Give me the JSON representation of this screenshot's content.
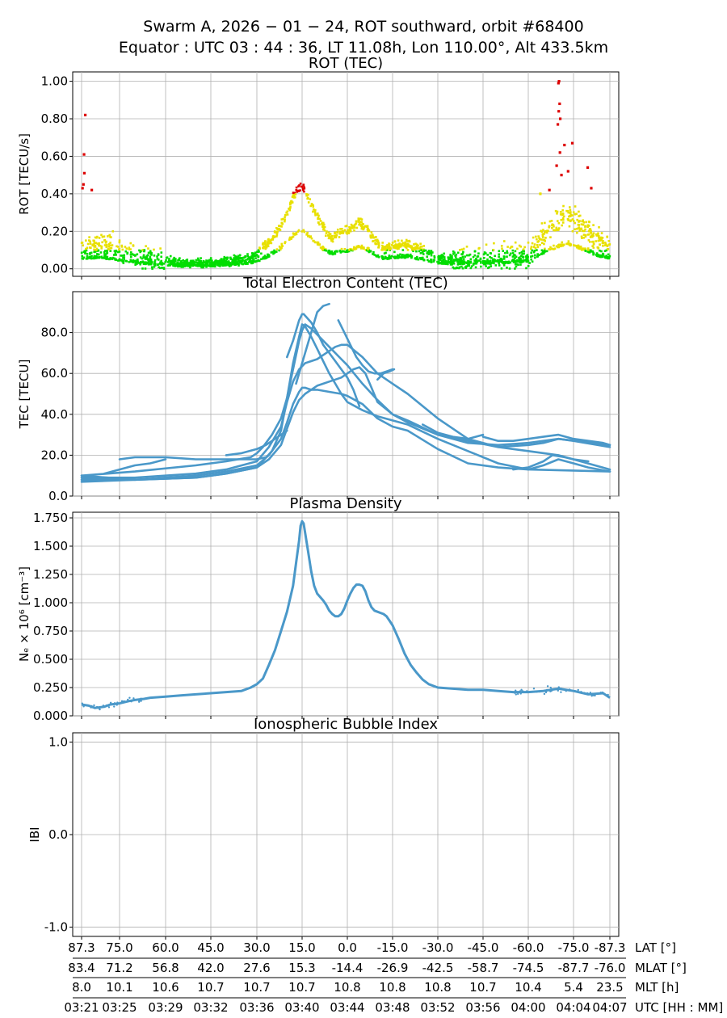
{
  "figure": {
    "title_line1": "Swarm A,  2026 − 01 − 24,  ROT southward,  orbit #68400",
    "title_line2": "Equator :  UTC 03 : 44 : 36,  LT 11.08h,  Lon 110.00°,  Alt 433.5km"
  },
  "colors": {
    "low": "#00dd00",
    "medium": "#e8e000",
    "high": "#dd0000",
    "line": "#4a98c9",
    "grid": "#b0b0b0"
  },
  "x_axis": {
    "rows": [
      {
        "label": "LAT [°]",
        "ticks": [
          "87.3",
          "75.0",
          "60.0",
          "45.0",
          "30.0",
          "15.0",
          "0.0",
          "-15.0",
          "-30.0",
          "-45.0",
          "-60.0",
          "-75.0",
          "-87.3"
        ]
      },
      {
        "label": "MLAT [°]",
        "ticks": [
          "83.4",
          "71.2",
          "56.8",
          "42.0",
          "27.6",
          "15.3",
          "-14.4",
          "-26.9",
          "-42.5",
          "-58.7",
          "-74.5",
          "-87.7",
          "-76.0"
        ]
      },
      {
        "label": "MLT [h]",
        "ticks": [
          "8.0",
          "10.1",
          "10.6",
          "10.7",
          "10.7",
          "10.7",
          "10.8",
          "10.8",
          "10.8",
          "10.7",
          "10.4",
          "5.4",
          "23.5"
        ]
      },
      {
        "label": "UTC [HH : MM]",
        "ticks": [
          "03:21",
          "03:25",
          "03:29",
          "03:32",
          "03:36",
          "03:40",
          "03:44",
          "03:48",
          "03:52",
          "03:56",
          "04:00",
          "04:04",
          "04:07"
        ]
      }
    ]
  },
  "chart_data": [
    {
      "type": "scatter",
      "title": "ROT (TEC)",
      "ylabel": "ROT [TECU/s]",
      "ylim": [
        -0.04,
        1.05
      ],
      "yticks": [
        "0.00",
        "0.20",
        "0.40",
        "0.60",
        "0.80",
        "1.00"
      ],
      "grid": true,
      "x_unit": "latitude (southward, 87.3 to -87.3)",
      "xlim": [
        88.6,
        -88.6
      ],
      "envelope": {
        "x": [
          87.3,
          85,
          82,
          80,
          77,
          75,
          70,
          65,
          60,
          55,
          50,
          45,
          40,
          35,
          32,
          30,
          28,
          25,
          22,
          20,
          18,
          16,
          15,
          14,
          12,
          10,
          8,
          6,
          5,
          3,
          1,
          0,
          -2,
          -4,
          -6,
          -8,
          -10,
          -12,
          -15,
          -20,
          -25,
          -30,
          -35,
          -40,
          -45,
          -50,
          -55,
          -60,
          -63,
          -66,
          -69,
          -72,
          -75,
          -78,
          -80,
          -82,
          -84,
          -87.3
        ],
        "y": [
          0.12,
          0.11,
          0.13,
          0.12,
          0.1,
          0.09,
          0.07,
          0.05,
          0.04,
          0.03,
          0.03,
          0.03,
          0.04,
          0.05,
          0.06,
          0.08,
          0.11,
          0.16,
          0.23,
          0.3,
          0.38,
          0.43,
          0.44,
          0.42,
          0.35,
          0.28,
          0.22,
          0.18,
          0.16,
          0.19,
          0.2,
          0.2,
          0.22,
          0.25,
          0.22,
          0.18,
          0.14,
          0.11,
          0.12,
          0.13,
          0.1,
          0.06,
          0.05,
          0.05,
          0.06,
          0.06,
          0.07,
          0.08,
          0.14,
          0.2,
          0.24,
          0.28,
          0.27,
          0.22,
          0.2,
          0.16,
          0.14,
          0.12
        ]
      },
      "spikes": [
        {
          "x": 86.1,
          "y": 0.82
        },
        {
          "x": 86.5,
          "y": 0.61
        },
        {
          "x": 86.4,
          "y": 0.51
        },
        {
          "x": 86.7,
          "y": 0.45
        },
        {
          "x": 87.0,
          "y": 0.43
        },
        {
          "x": 84.0,
          "y": 0.42
        },
        {
          "x": -70.2,
          "y": 1.0
        },
        {
          "x": -70.0,
          "y": 0.99
        },
        {
          "x": -70.4,
          "y": 0.88
        },
        {
          "x": -70.1,
          "y": 0.84
        },
        {
          "x": -70.6,
          "y": 0.8
        },
        {
          "x": -69.8,
          "y": 0.77
        },
        {
          "x": -72.0,
          "y": 0.66
        },
        {
          "x": -74.6,
          "y": 0.67
        },
        {
          "x": -70.5,
          "y": 0.62
        },
        {
          "x": -79.8,
          "y": 0.54
        },
        {
          "x": -69.4,
          "y": 0.55
        },
        {
          "x": -73.2,
          "y": 0.52
        },
        {
          "x": -71.0,
          "y": 0.5
        },
        {
          "x": -81.0,
          "y": 0.43
        },
        {
          "x": -67.0,
          "y": 0.42
        },
        {
          "x": -64.0,
          "y": 0.4
        }
      ],
      "thresholds": [
        0.1,
        0.4
      ]
    },
    {
      "type": "line",
      "title": "Total Electron Content (TEC)",
      "ylabel": "TEC [TECU]",
      "ylim": [
        0,
        100
      ],
      "yticks": [
        "0.0",
        "20.0",
        "40.0",
        "60.0",
        "80.0"
      ],
      "grid": true,
      "xlim": [
        88.6,
        -88.6
      ],
      "series": [
        {
          "x": [
            87.3,
            70,
            50,
            40,
            30,
            25,
            22,
            20,
            18,
            16,
            15,
            14,
            12,
            10,
            8,
            6,
            4,
            2,
            0,
            -5,
            -10,
            -15,
            -20,
            -30,
            -40,
            -50,
            -60,
            -65,
            -70,
            -75,
            -80,
            -87.3
          ],
          "y": [
            10,
            8,
            9,
            11,
            14,
            22,
            32,
            48,
            65,
            78,
            84,
            83,
            78,
            72,
            66,
            60,
            55,
            50,
            46,
            42,
            39,
            37,
            35,
            28,
            22,
            16,
            13,
            15,
            18,
            16,
            14,
            12
          ]
        },
        {
          "x": [
            87.3,
            70,
            50,
            40,
            30,
            26,
            22,
            20,
            18,
            16,
            14,
            12,
            10,
            8,
            6,
            4,
            2,
            0,
            -5,
            -10,
            -15,
            -20,
            -30,
            -40,
            -50,
            -60,
            -65,
            -70,
            -75,
            -87.3
          ],
          "y": [
            9,
            9,
            11,
            13,
            17,
            24,
            34,
            46,
            56,
            62,
            65,
            66,
            67,
            69,
            71,
            73,
            74,
            74,
            68,
            60,
            55,
            50,
            38,
            28,
            24,
            25,
            26,
            28,
            27,
            24
          ]
        },
        {
          "x": [
            87.3,
            70,
            50,
            40,
            30,
            26,
            22,
            20,
            18,
            16,
            15,
            14,
            12,
            10,
            6,
            2,
            0,
            -5,
            -10,
            -15,
            -20,
            -30,
            -40,
            -50,
            -60,
            -87.3
          ],
          "y": [
            8,
            8,
            10,
            12,
            15,
            20,
            28,
            36,
            45,
            51,
            53,
            53,
            52,
            52,
            51,
            50,
            49,
            45,
            38,
            34,
            32,
            23,
            16,
            14,
            13,
            12
          ]
        },
        {
          "x": [
            87.3,
            70,
            50,
            40,
            30,
            26,
            22,
            20,
            18,
            16,
            14,
            12,
            10,
            8,
            6,
            4,
            2,
            0,
            -2,
            -4,
            -6,
            -8,
            -10,
            -15,
            -20,
            -30,
            -40,
            -50,
            -60,
            -70,
            -87.3
          ],
          "y": [
            7,
            8,
            9,
            11,
            14,
            18,
            25,
            33,
            41,
            47,
            50,
            52,
            54,
            55,
            56,
            57,
            58,
            60,
            62,
            63,
            60,
            53,
            46,
            40,
            36,
            30,
            26,
            25,
            26,
            28,
            25
          ]
        },
        {
          "x": [
            87.3,
            70,
            50,
            40,
            32,
            30,
            28,
            25,
            22,
            20,
            18,
            16,
            15,
            14,
            12,
            10,
            8,
            6,
            4,
            2,
            0,
            -5,
            -10,
            -15,
            -20,
            -30,
            -40,
            -50,
            -60,
            -70,
            -87.3
          ],
          "y": [
            10,
            12,
            15,
            17,
            19,
            21,
            24,
            30,
            38,
            48,
            62,
            76,
            81,
            84,
            82,
            79,
            76,
            73,
            70,
            67,
            64,
            55,
            47,
            40,
            37,
            30,
            27,
            24,
            22,
            20,
            13
          ]
        },
        {
          "x": [
            20,
            18,
            16,
            15,
            14.5
          ],
          "y": [
            68,
            76,
            86,
            89,
            89
          ]
        },
        {
          "x": [
            14.5,
            12,
            10,
            8,
            6,
            4,
            2,
            0,
            -2,
            -4
          ],
          "y": [
            89,
            85,
            80,
            74,
            70,
            66,
            62,
            58,
            52,
            44
          ]
        },
        {
          "x": [
            17,
            15,
            12,
            10,
            8,
            6
          ],
          "y": [
            55,
            65,
            80,
            90,
            93,
            94
          ]
        },
        {
          "x": [
            3,
            1,
            -1,
            -3,
            -5,
            -7,
            -9,
            -11,
            -13,
            -15
          ],
          "y": [
            86,
            80,
            74,
            68,
            64,
            61,
            60,
            60,
            61,
            62
          ]
        },
        {
          "x": [
            -10,
            -12,
            -14,
            -15.5
          ],
          "y": [
            57,
            60,
            61,
            62
          ]
        },
        {
          "x": [
            -25,
            -30,
            -35,
            -40,
            -45
          ],
          "y": [
            35,
            31,
            29,
            28,
            30
          ]
        },
        {
          "x": [
            -45,
            -50,
            -55,
            -60,
            -65,
            -70,
            -75,
            -80,
            -85,
            -87.3
          ],
          "y": [
            29,
            27,
            27,
            28,
            29,
            30,
            28,
            27,
            26,
            25
          ]
        },
        {
          "x": [
            80,
            75,
            70,
            65,
            60
          ],
          "y": [
            11,
            13,
            15,
            16,
            18
          ]
        },
        {
          "x": [
            75,
            70,
            60,
            50,
            40,
            35,
            30,
            27
          ],
          "y": [
            18,
            19,
            19,
            18,
            18,
            18,
            18,
            19
          ]
        },
        {
          "x": [
            40,
            35,
            30,
            27,
            24,
            20
          ],
          "y": [
            20,
            21,
            23,
            25,
            28,
            32
          ]
        },
        {
          "x": [
            -55,
            -60,
            -65,
            -68,
            -72,
            -75,
            -80
          ],
          "y": [
            13,
            14,
            17,
            20,
            19,
            18,
            17
          ]
        }
      ]
    },
    {
      "type": "scatter",
      "title": "Plasma Density",
      "ylabel": "Nₑ × 10⁶ [cm⁻³]",
      "ylim": [
        0,
        1.8
      ],
      "yticks": [
        "0.000",
        "0.250",
        "0.500",
        "0.750",
        "1.000",
        "1.250",
        "1.500",
        "1.750"
      ],
      "grid": true,
      "xlim": [
        88.6,
        -88.6
      ],
      "series": [
        {
          "x": [
            87.3,
            85,
            83,
            80,
            78,
            75,
            72,
            70,
            67,
            65,
            60,
            55,
            50,
            45,
            40,
            35,
            32,
            30,
            28,
            26,
            24,
            22,
            20,
            18,
            17,
            16,
            15.5,
            15,
            14.5,
            14,
            13,
            12,
            11,
            10,
            9,
            8,
            7,
            6,
            5,
            4,
            3,
            2,
            1,
            0,
            -1,
            -2,
            -3,
            -4,
            -5,
            -6,
            -7,
            -8,
            -9,
            -10,
            -11,
            -12,
            -13,
            -14,
            -15,
            -17,
            -19,
            -21,
            -23,
            -25,
            -27,
            -30,
            -35,
            -40,
            -45,
            -50,
            -55,
            -60,
            -65,
            -70,
            -75,
            -80,
            -85,
            -87.3
          ],
          "y": [
            0.1,
            0.09,
            0.07,
            0.08,
            0.1,
            0.11,
            0.13,
            0.14,
            0.15,
            0.16,
            0.17,
            0.18,
            0.19,
            0.2,
            0.21,
            0.22,
            0.25,
            0.28,
            0.33,
            0.45,
            0.58,
            0.75,
            0.92,
            1.15,
            1.35,
            1.55,
            1.68,
            1.72,
            1.7,
            1.62,
            1.45,
            1.28,
            1.15,
            1.08,
            1.05,
            1.02,
            0.98,
            0.93,
            0.9,
            0.88,
            0.88,
            0.9,
            0.95,
            1.02,
            1.08,
            1.13,
            1.16,
            1.16,
            1.15,
            1.1,
            1.02,
            0.96,
            0.93,
            0.92,
            0.91,
            0.9,
            0.88,
            0.84,
            0.8,
            0.68,
            0.55,
            0.45,
            0.38,
            0.32,
            0.28,
            0.25,
            0.24,
            0.23,
            0.23,
            0.22,
            0.21,
            0.21,
            0.22,
            0.24,
            0.22,
            0.19,
            0.2,
            0.16
          ]
        }
      ]
    },
    {
      "type": "scatter",
      "title": "Ionospheric Bubble Index",
      "ylabel": "IBI",
      "ylim": [
        -1.1,
        1.1
      ],
      "yticks": [
        "-1.0",
        "0.0",
        "1.0"
      ],
      "grid": true,
      "xlim": [
        88.6,
        -88.6
      ],
      "series": []
    }
  ]
}
